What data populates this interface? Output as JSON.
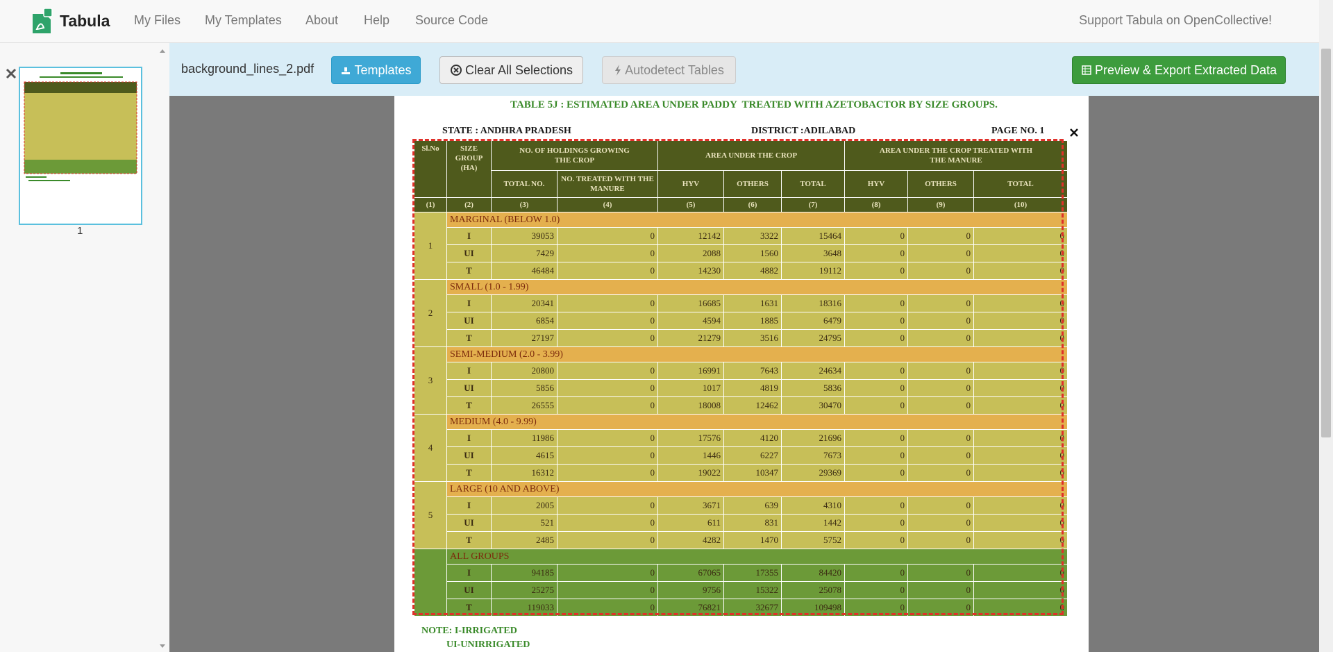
{
  "navbar": {
    "brand": "Tabula",
    "links": [
      "My Files",
      "My Templates",
      "About",
      "Help",
      "Source Code"
    ],
    "support": "Support Tabula on OpenCollective!"
  },
  "toolbar": {
    "filename": "background_lines_2.pdf",
    "buttons": [
      "Templates",
      "Clear All Selections",
      "Autodetect Tables",
      "Preview & Export Extracted Data"
    ]
  },
  "sidebar": {
    "page_label": "1"
  },
  "document": {
    "title": "TABLE 5J : ESTIMATED AREA UNDER PADDY  TREATED WITH AZETOBACTOR BY SIZE GROUPS.",
    "state": "STATE : ANDHRA PRADESH",
    "district": "DISTRICT :ADILABAD",
    "page_no": "PAGE NO. 1",
    "table": {
      "header": {
        "sl_no": "Sl.No",
        "size_group": "SIZE GROUP (HA)",
        "holdings": "NO. OF HOLDINGS GROWING THE CROP",
        "area": "AREA UNDER THE CROP",
        "area_treated": "AREA UNDER THE CROP TREATED WITH THE  MANURE",
        "subcolumns": [
          "TOTAL NO.",
          "NO. TREATED WITH THE  MANURE",
          "HYV",
          "OTHERS",
          "TOTAL",
          "HYV",
          "OTHERS",
          "TOTAL"
        ]
      },
      "column_numbers": [
        "(1)",
        "(2)",
        "(3)",
        "(4)",
        "(5)",
        "(6)",
        "(7)",
        "(8)",
        "(9)",
        "(10)"
      ],
      "groups": [
        {
          "sl": "1",
          "name": "MARGINAL (BELOW 1.0)",
          "rows": [
            {
              "type": "I",
              "values": [
                39053,
                0,
                12142,
                3322,
                15464,
                0,
                0,
                0
              ]
            },
            {
              "type": "UI",
              "values": [
                7429,
                0,
                2088,
                1560,
                3648,
                0,
                0,
                0
              ]
            },
            {
              "type": "T",
              "values": [
                46484,
                0,
                14230,
                4882,
                19112,
                0,
                0,
                0
              ]
            }
          ]
        },
        {
          "sl": "2",
          "name": "SMALL (1.0 - 1.99)",
          "rows": [
            {
              "type": "I",
              "values": [
                20341,
                0,
                16685,
                1631,
                18316,
                0,
                0,
                0
              ]
            },
            {
              "type": "UI",
              "values": [
                6854,
                0,
                4594,
                1885,
                6479,
                0,
                0,
                0
              ]
            },
            {
              "type": "T",
              "values": [
                27197,
                0,
                21279,
                3516,
                24795,
                0,
                0,
                0
              ]
            }
          ]
        },
        {
          "sl": "3",
          "name": "SEMI-MEDIUM (2.0 - 3.99)",
          "rows": [
            {
              "type": "I",
              "values": [
                20800,
                0,
                16991,
                7643,
                24634,
                0,
                0,
                0
              ]
            },
            {
              "type": "UI",
              "values": [
                5856,
                0,
                1017,
                4819,
                5836,
                0,
                0,
                0
              ]
            },
            {
              "type": "T",
              "values": [
                26555,
                0,
                18008,
                12462,
                30470,
                0,
                0,
                0
              ]
            }
          ]
        },
        {
          "sl": "4",
          "name": "MEDIUM (4.0 - 9.99)",
          "rows": [
            {
              "type": "I",
              "values": [
                11986,
                0,
                17576,
                4120,
                21696,
                0,
                0,
                0
              ]
            },
            {
              "type": "UI",
              "values": [
                4615,
                0,
                1446,
                6227,
                7673,
                0,
                0,
                0
              ]
            },
            {
              "type": "T",
              "values": [
                16312,
                0,
                19022,
                10347,
                29369,
                0,
                0,
                0
              ]
            }
          ]
        },
        {
          "sl": "5",
          "name": "LARGE (10 AND ABOVE)",
          "rows": [
            {
              "type": "I",
              "values": [
                2005,
                0,
                3671,
                639,
                4310,
                0,
                0,
                0
              ]
            },
            {
              "type": "UI",
              "values": [
                521,
                0,
                611,
                831,
                1442,
                0,
                0,
                0
              ]
            },
            {
              "type": "T",
              "values": [
                2485,
                0,
                4282,
                1470,
                5752,
                0,
                0,
                0
              ]
            }
          ]
        },
        {
          "name": "ALL GROUPS",
          "rows": [
            {
              "type": "I",
              "values": [
                94185,
                0,
                67065,
                17355,
                84420,
                0,
                0,
                0
              ]
            },
            {
              "type": "UI",
              "values": [
                25275,
                0,
                9756,
                15322,
                25078,
                0,
                0,
                0
              ]
            },
            {
              "type": "T",
              "values": [
                119033,
                0,
                76821,
                32677,
                109498,
                0,
                0,
                0
              ]
            }
          ]
        }
      ]
    },
    "note": [
      "NOTE: I-IRRIGATED",
      "UI-UNIRRIGATED"
    ]
  }
}
